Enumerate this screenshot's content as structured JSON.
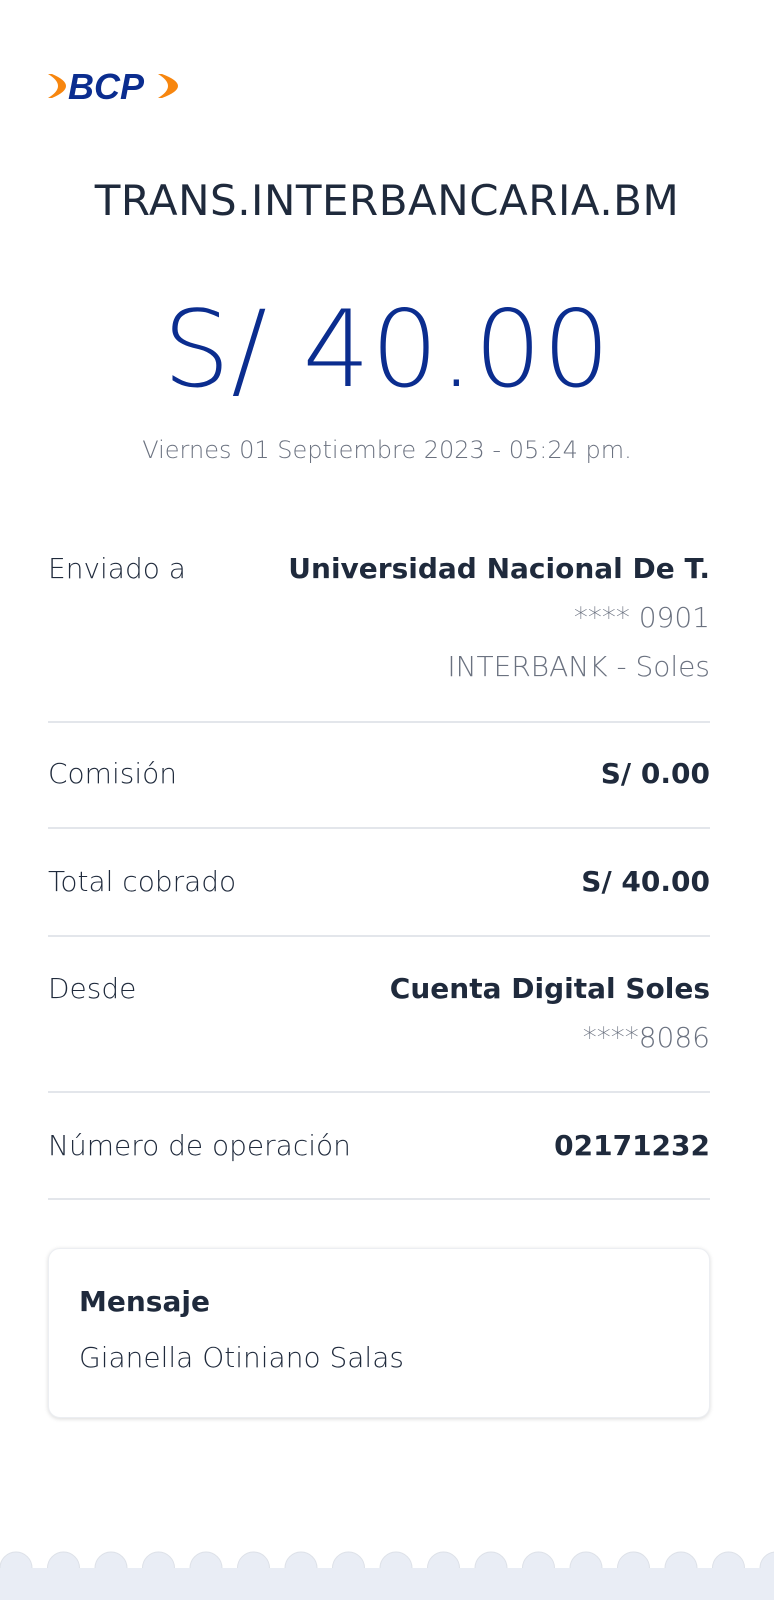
{
  "brand": {
    "logo_text": "BCP",
    "colors": {
      "blue": "#0b2d8f",
      "orange": "#f7860f"
    }
  },
  "header": {
    "title": "TRANS.INTERBANCARIA.BM",
    "amount": "S/ 40.00",
    "date": "Viernes 01 Septiembre 2023 - 05:24 pm."
  },
  "details": {
    "sent_to": {
      "label": "Enviado a",
      "value": "Universidad Nacional De T.",
      "account": "**** 0901",
      "bank": "INTERBANK - Soles"
    },
    "commission": {
      "label": "Comisión",
      "value": "S/ 0.00"
    },
    "total": {
      "label": "Total cobrado",
      "value": "S/ 40.00"
    },
    "from": {
      "label": "Desde",
      "value": "Cuenta Digital Soles",
      "account": "****8086"
    },
    "operation": {
      "label": "Número de operación",
      "value": "02171232"
    }
  },
  "message": {
    "title": "Mensaje",
    "text": "Gianella Otiniano Salas"
  }
}
